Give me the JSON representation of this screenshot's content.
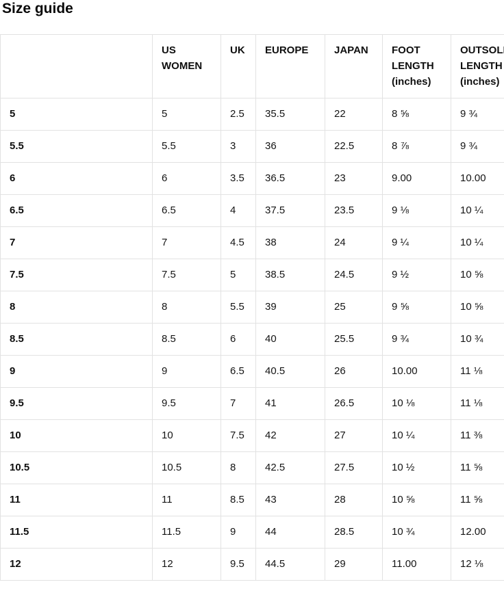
{
  "page": {
    "title": "Size guide"
  },
  "colors": {
    "border": "#e2e2e2",
    "text": "#141414",
    "background": "#ffffff"
  },
  "table": {
    "corner": "",
    "headers": [
      "US WOMEN",
      "UK",
      "EUROPE",
      "JAPAN",
      "FOOT LENGTH (inches)",
      "OUTSOLE LENGTH (inches)"
    ],
    "rows": [
      {
        "label": "5",
        "cells": [
          "5",
          "2.5",
          "35.5",
          "22",
          "8 ⅝",
          "9 ¾"
        ]
      },
      {
        "label": "5.5",
        "cells": [
          "5.5",
          "3",
          "36",
          "22.5",
          "8 ⅞",
          "9 ¾"
        ]
      },
      {
        "label": "6",
        "cells": [
          "6",
          "3.5",
          "36.5",
          "23",
          "9.00",
          "10.00"
        ]
      },
      {
        "label": "6.5",
        "cells": [
          "6.5",
          "4",
          "37.5",
          "23.5",
          "9 ⅛",
          "10 ¼"
        ]
      },
      {
        "label": "7",
        "cells": [
          "7",
          "4.5",
          "38",
          "24",
          "9 ¼",
          "10 ¼"
        ]
      },
      {
        "label": "7.5",
        "cells": [
          "7.5",
          "5",
          "38.5",
          "24.5",
          "9 ½",
          "10 ⅝"
        ]
      },
      {
        "label": "8",
        "cells": [
          "8",
          "5.5",
          "39",
          "25",
          "9 ⅝",
          "10 ⅝"
        ]
      },
      {
        "label": "8.5",
        "cells": [
          "8.5",
          "6",
          "40",
          "25.5",
          "9 ¾",
          "10 ¾"
        ]
      },
      {
        "label": "9",
        "cells": [
          "9",
          "6.5",
          "40.5",
          "26",
          "10.00",
          "11 ⅛"
        ]
      },
      {
        "label": "9.5",
        "cells": [
          "9.5",
          "7",
          "41",
          "26.5",
          "10 ⅛",
          "11 ⅛"
        ]
      },
      {
        "label": "10",
        "cells": [
          "10",
          "7.5",
          "42",
          "27",
          "10 ¼",
          "11 ⅜"
        ]
      },
      {
        "label": "10.5",
        "cells": [
          "10.5",
          "8",
          "42.5",
          "27.5",
          "10 ½",
          "11 ⅝"
        ]
      },
      {
        "label": "11",
        "cells": [
          "11",
          "8.5",
          "43",
          "28",
          "10 ⅝",
          "11 ⅝"
        ]
      },
      {
        "label": "11.5",
        "cells": [
          "11.5",
          "9",
          "44",
          "28.5",
          "10 ¾",
          "12.00"
        ]
      },
      {
        "label": "12",
        "cells": [
          "12",
          "9.5",
          "44.5",
          "29",
          "11.00",
          "12 ⅛"
        ]
      }
    ]
  }
}
